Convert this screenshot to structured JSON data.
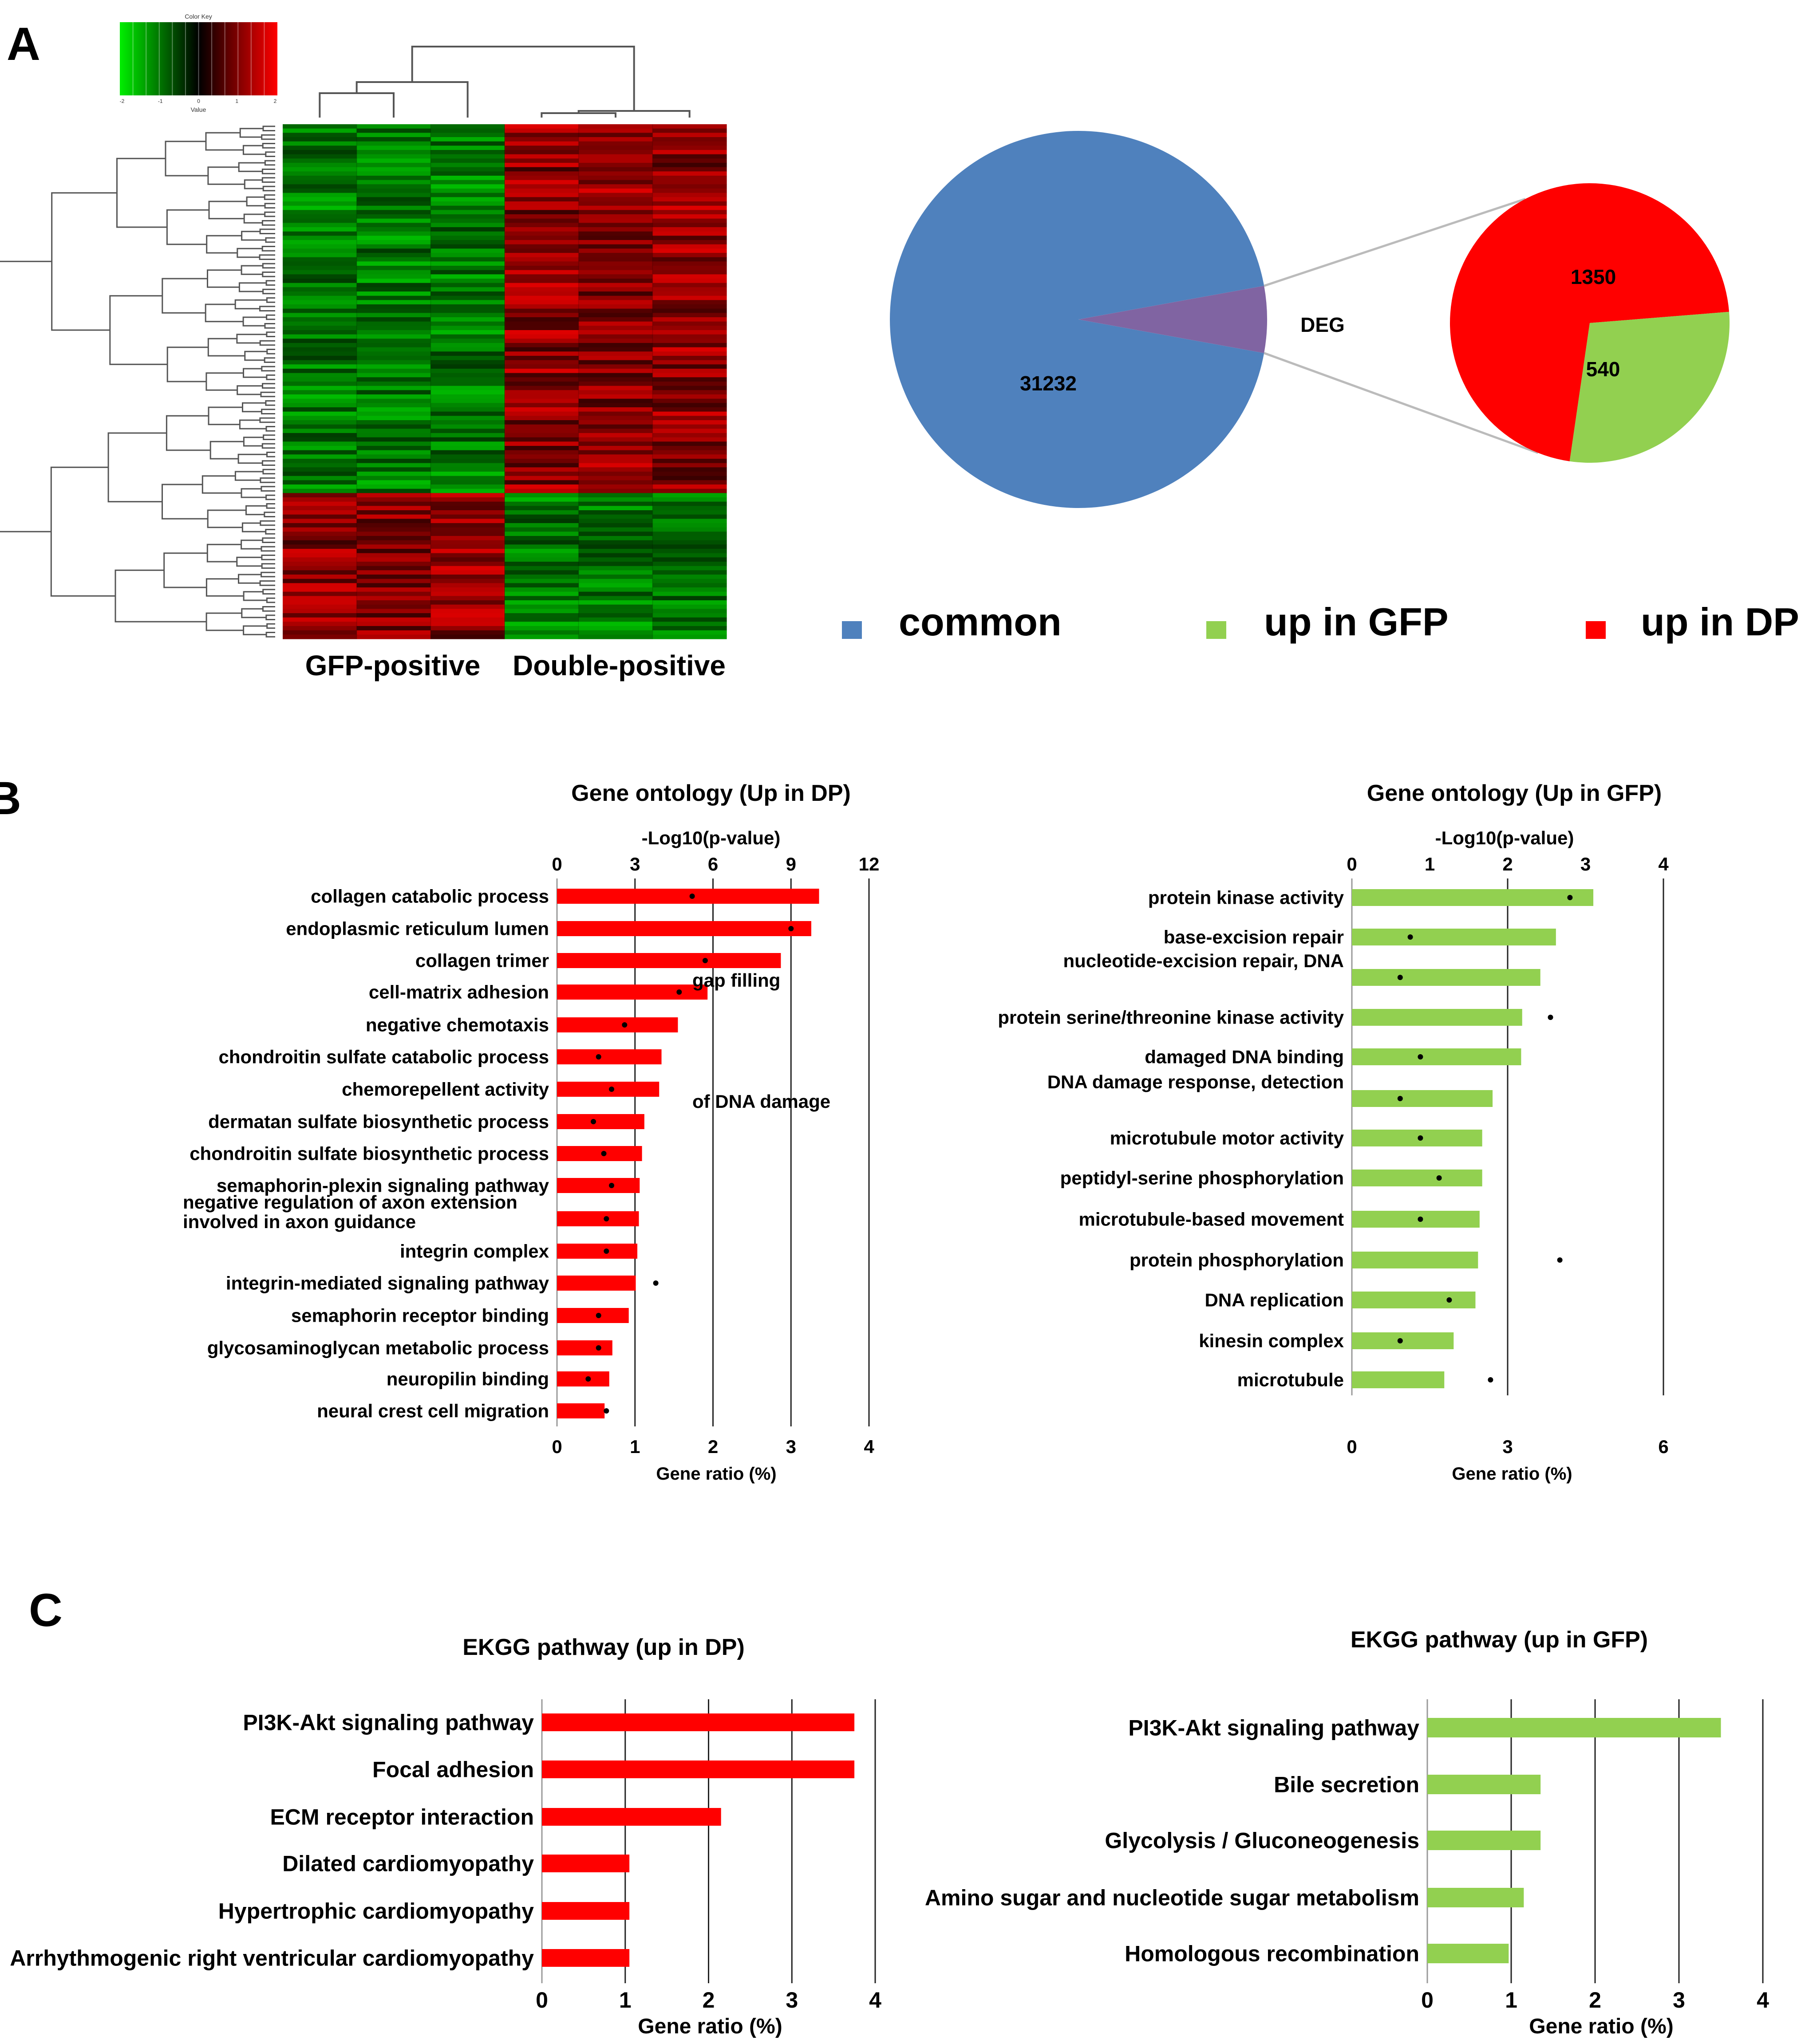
{
  "panel_labels": [
    "A",
    "B",
    "C"
  ],
  "heatmap": {
    "color_key_title": "Color Key",
    "color_key_axis_label": "Value",
    "color_key_ticks": [
      "-2",
      "-1",
      "0",
      "1",
      "2"
    ],
    "colors": {
      "low": "#00cc00",
      "mid": "#000000",
      "high": "#ff0000"
    },
    "group_labels": [
      "GFP-positive",
      "Double-positive"
    ]
  },
  "pie": {
    "values": {
      "common": 31232,
      "deg": 1890,
      "up_in_dp": 1350,
      "up_in_gfp": 540
    },
    "labels": {
      "common": "31232",
      "deg": "DEG",
      "up_in_dp": "1350",
      "up_in_gfp": "540"
    },
    "colors": {
      "common": "#4f81bd",
      "deg": "#8064a2",
      "up_in_dp": "#ff0000",
      "up_in_gfp": "#92d050"
    }
  },
  "legend": [
    {
      "label": "common",
      "color": "#4f81bd"
    },
    {
      "label": "up in GFP",
      "color": "#92d050"
    },
    {
      "label": "up in DP",
      "color": "#ff0000"
    }
  ],
  "chart_data": [
    {
      "type": "bar",
      "panel": "B",
      "title": "Gene ontology (Up in DP)",
      "top_axis_label": "-Log10(p-value)",
      "top_axis_ticks": [
        0,
        3,
        6,
        9,
        12
      ],
      "top_lim": [
        0,
        12
      ],
      "xlabel": "Gene ratio (%)",
      "xlim": [
        0,
        4
      ],
      "xticks": [
        0,
        1,
        2,
        3,
        4
      ],
      "bar_color": "#ff0000",
      "categories": [
        "collagen catabolic process",
        "endoplasmic reticulum lumen",
        "collagen trimer",
        "cell-matrix adhesion",
        "negative chemotaxis",
        "chondroitin sulfate catabolic process",
        "chemorepellent activity",
        "dermatan sulfate biosynthetic process",
        "chondroitin sulfate biosynthetic process",
        "semaphorin-plexin signaling pathway",
        "negative regulation of axon extension involved in axon guidance",
        "integrin complex",
        "integrin-mediated signaling pathway",
        "semaphorin receptor binding",
        "glycosaminoglycan metabolic process",
        "neuropilin binding",
        "neural crest cell migration"
      ],
      "series": [
        {
          "values": [
            3.36,
            3.26,
            2.87,
            1.93,
            1.55,
            1.34,
            1.31,
            1.12,
            1.09,
            1.06,
            1.05,
            1.03,
            1.01,
            0.92,
            0.71,
            0.67,
            0.61
          ]
        },
        {
          "values": [
            5.2,
            9.0,
            5.7,
            4.7,
            2.6,
            1.6,
            2.1,
            1.4,
            1.8,
            2.1,
            1.9,
            1.9,
            3.8,
            1.6,
            1.6,
            1.2,
            1.9
          ]
        }
      ]
    },
    {
      "type": "bar",
      "panel": "B",
      "title": "Gene ontology (Up in GFP)",
      "top_axis_label": "-Log10(p-value)",
      "top_axis_ticks": [
        0,
        1,
        2,
        3,
        4
      ],
      "top_lim": [
        0,
        4
      ],
      "xlabel": "Gene ratio (%)",
      "xlim": [
        0,
        6
      ],
      "xticks": [
        0,
        3,
        6
      ],
      "bar_color": "#92d050",
      "categories": [
        "protein kinase activity",
        "base-excision repair",
        "nucleotide-excision repair, DNA gap filling",
        "protein serine/threonine kinase activity",
        "damaged DNA binding",
        "DNA damage response, detection of DNA damage",
        "microtubule motor activity",
        "peptidyl-serine phosphorylation",
        "microtubule-based movement",
        "protein phosphorylation",
        "DNA replication",
        "kinesin complex",
        "microtubule"
      ],
      "series": [
        {
          "values": [
            4.65,
            3.93,
            3.63,
            3.28,
            3.26,
            2.71,
            2.51,
            2.51,
            2.46,
            2.43,
            2.38,
            1.96,
            1.78
          ]
        },
        {
          "values": [
            2.8,
            0.75,
            0.62,
            2.55,
            0.88,
            0.62,
            0.88,
            1.12,
            0.88,
            2.67,
            1.25,
            0.62,
            1.78
          ]
        }
      ]
    },
    {
      "type": "bar",
      "panel": "C",
      "title": "EKGG pathway (up in DP)",
      "xlabel": "Gene ratio (%)",
      "xlim": [
        0,
        4
      ],
      "xticks": [
        0,
        1,
        2,
        3,
        4
      ],
      "bar_color": "#ff0000",
      "categories": [
        "PI3K-Akt signaling pathway",
        "Focal adhesion",
        "ECM receptor interaction",
        "Dilated cardiomyopathy",
        "Hypertrophic cardiomyopathy",
        "Arrhythmogenic right ventricular cardiomyopathy"
      ],
      "values": [
        3.75,
        3.75,
        2.15,
        1.05,
        1.05,
        1.05
      ]
    },
    {
      "type": "bar",
      "panel": "C",
      "title": "EKGG pathway (up in GFP)",
      "xlabel": "Gene ratio (%)",
      "xlim": [
        0,
        4
      ],
      "xticks": [
        0,
        1,
        2,
        3,
        4
      ],
      "bar_color": "#92d050",
      "categories": [
        "PI3K-Akt signaling pathway",
        "Bile secretion",
        "Glycolysis / Gluconeogenesis",
        "Amino sugar and nucleotide sugar metabolism",
        "Homologous recombination"
      ],
      "values": [
        3.5,
        1.35,
        1.35,
        1.15,
        0.97
      ]
    }
  ]
}
